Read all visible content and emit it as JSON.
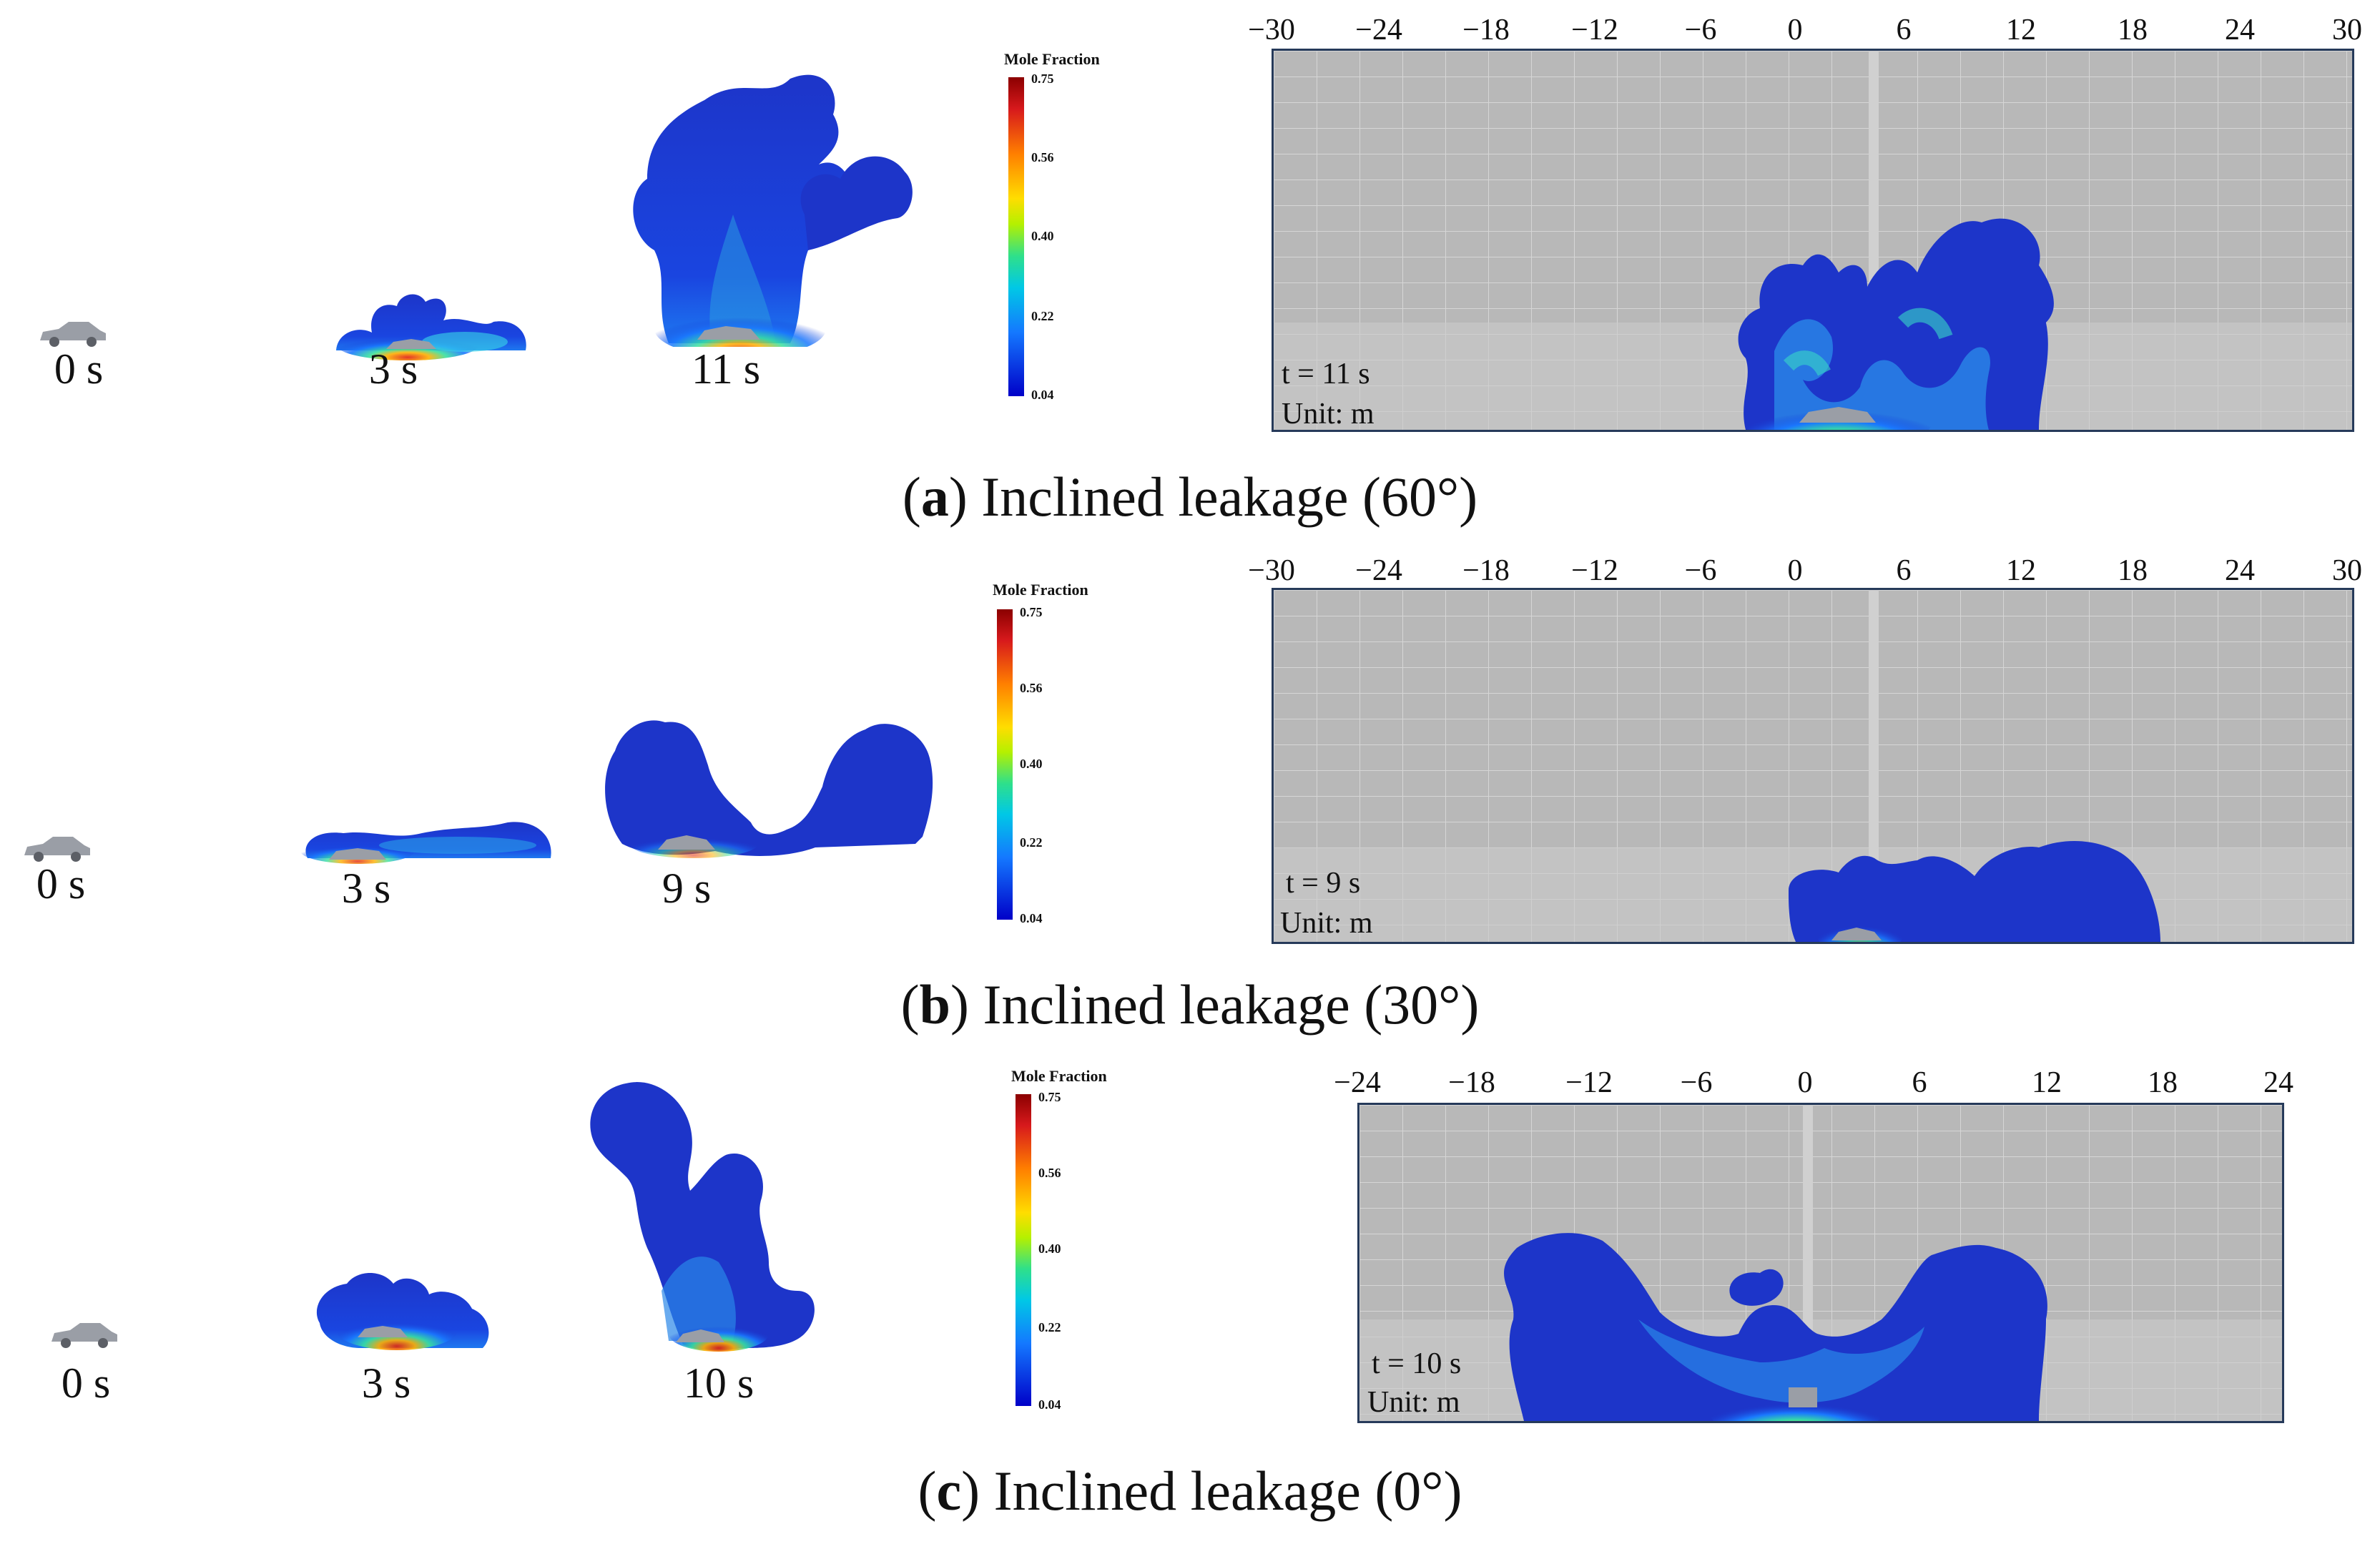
{
  "colorbar": {
    "title": "Mole Fraction",
    "ticks": [
      "0.75",
      "0.56",
      "0.40",
      "0.22",
      "0.04"
    ]
  },
  "panels": [
    {
      "caption_letter": "a",
      "caption_text": " Inclined leakage (60°)",
      "time_labels": [
        "0 s",
        "3 s",
        "11 s"
      ],
      "axis_ticks": [
        "−30",
        "−24",
        "−18",
        "−12",
        "−6",
        "0",
        "6",
        "12",
        "18",
        "24",
        "30"
      ],
      "plot_time": "t = 11 s",
      "plot_unit": "Unit: m"
    },
    {
      "caption_letter": "b",
      "caption_text": " Inclined leakage (30°)",
      "time_labels": [
        "0 s",
        "3 s",
        "9 s"
      ],
      "axis_ticks": [
        "−30",
        "−24",
        "−18",
        "−12",
        "−6",
        "0",
        "6",
        "12",
        "18",
        "24",
        "30"
      ],
      "plot_time": "t = 9 s",
      "plot_unit": "Unit: m"
    },
    {
      "caption_letter": "c",
      "caption_text": " Inclined leakage (0°)",
      "time_labels": [
        "0 s",
        "3 s",
        "10 s"
      ],
      "axis_ticks": [
        "−24",
        "−18",
        "−12",
        "−6",
        "0",
        "6",
        "12",
        "18",
        "24"
      ],
      "plot_time": "t = 10 s",
      "plot_unit": "Unit: m"
    }
  ],
  "colors": {
    "cloud_blue": "#1a3ed6",
    "cloud_deep": "#1d2fb8",
    "hot_red": "#e02010",
    "plot_bg": "#b9b9b9",
    "plot_border": "#263a5a"
  }
}
